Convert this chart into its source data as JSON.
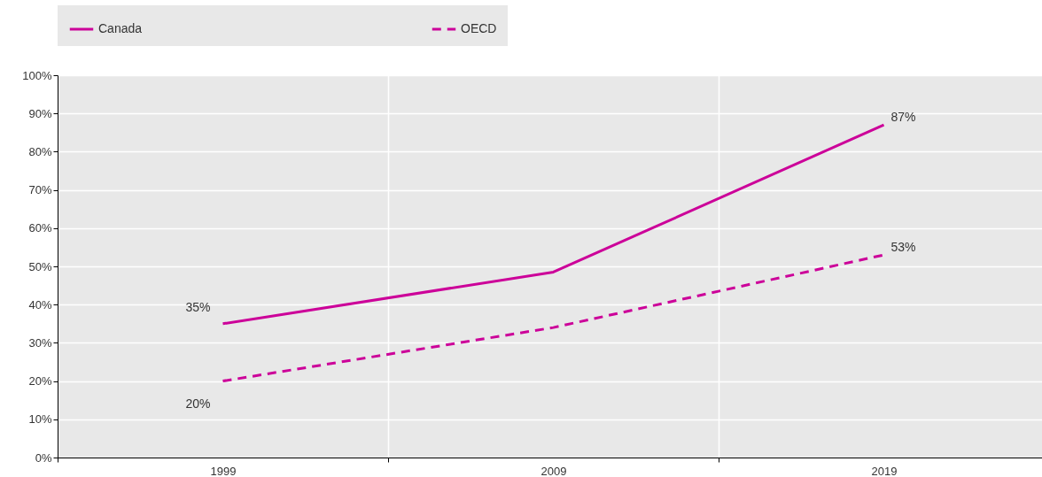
{
  "chart_data": {
    "type": "line",
    "categories": [
      "1999",
      "2009",
      "2019"
    ],
    "series": [
      {
        "name": "Canada",
        "color": "#cc0099",
        "line_style": "solid",
        "values": [
          35,
          48.5,
          87
        ],
        "value_labels": [
          "35%",
          null,
          "87%"
        ]
      },
      {
        "name": "OECD",
        "color": "#cc0099",
        "line_style": "dashed",
        "values": [
          20,
          34,
          53
        ],
        "value_labels": [
          "20%",
          null,
          "53%"
        ]
      }
    ],
    "ylim": [
      0,
      100
    ],
    "yticks": [
      {
        "value": 0,
        "label": "0%"
      },
      {
        "value": 10,
        "label": "10%"
      },
      {
        "value": 20,
        "label": "20%"
      },
      {
        "value": 30,
        "label": "30%"
      },
      {
        "value": 40,
        "label": "40%"
      },
      {
        "value": 50,
        "label": "50%"
      },
      {
        "value": 60,
        "label": "60%"
      },
      {
        "value": 70,
        "label": "70%"
      },
      {
        "value": 80,
        "label": "80%"
      },
      {
        "value": 90,
        "label": "90%"
      },
      {
        "value": 100,
        "label": "100%"
      }
    ],
    "grid": true,
    "legend": "top",
    "marker": "none"
  }
}
